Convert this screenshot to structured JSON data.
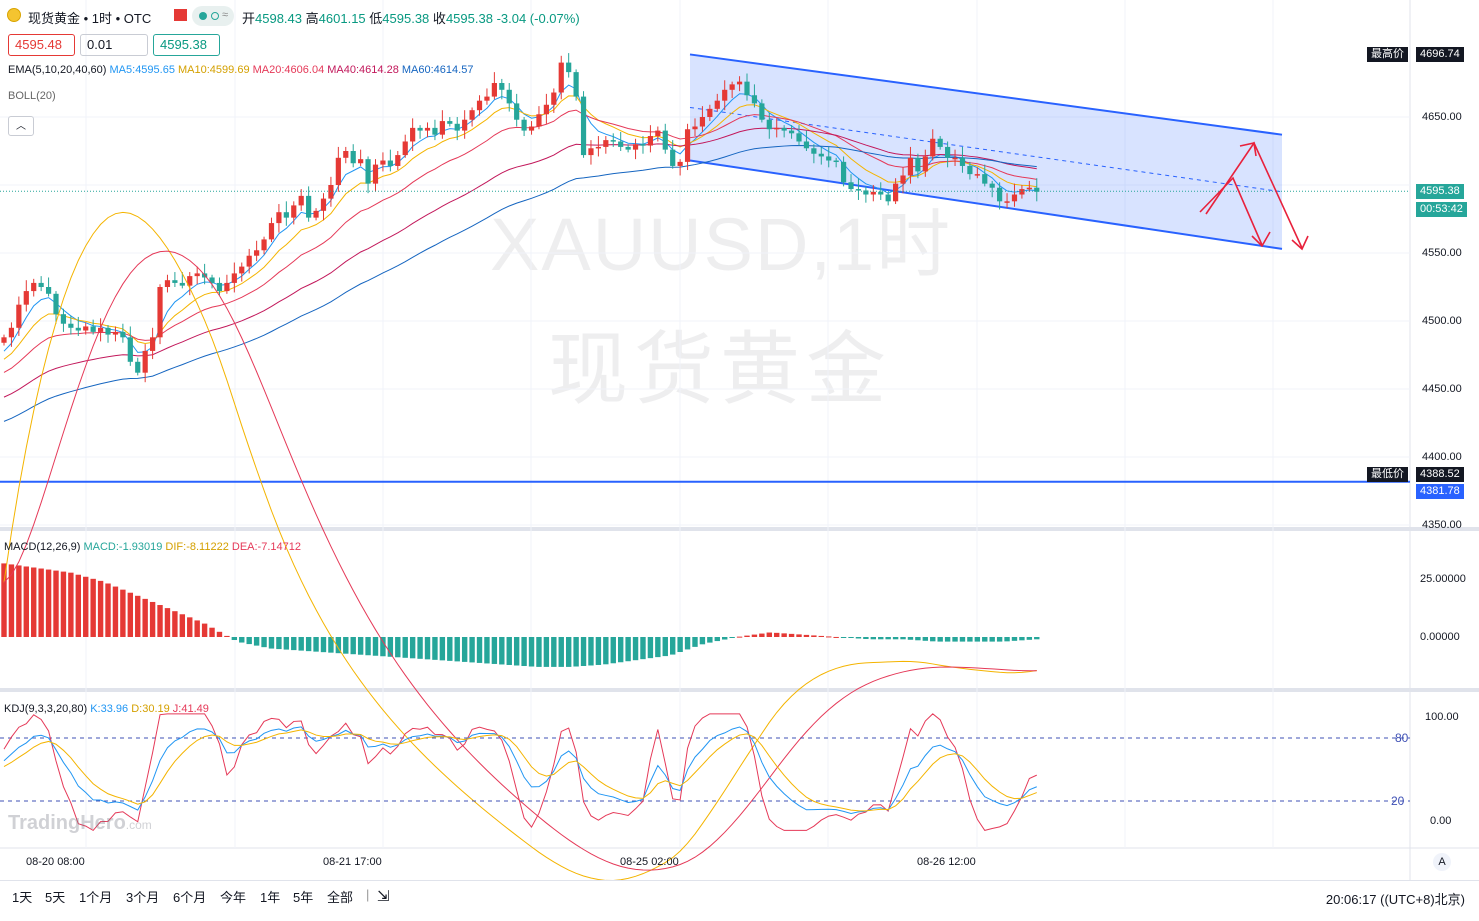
{
  "header": {
    "title": "现货黄金 • 1时 • OTC",
    "open_label": "开",
    "open": "4598.43",
    "high_label": "高",
    "high": "4601.15",
    "low_label": "低",
    "low": "4595.38",
    "close_label": "收",
    "close": "4595.38",
    "change": "-3.04 (-0.07%)"
  },
  "trade": {
    "sell": "4595.48",
    "qty": "0.01",
    "buy": "4595.38"
  },
  "indicators": {
    "ema_name": "EMA(5,10,20,40,60)",
    "ma5": "MA5:4595.65",
    "ma10": "MA10:4599.69",
    "ma20": "MA20:4606.04",
    "ma40": "MA40:4614.28",
    "ma60": "MA60:4614.57",
    "boll": "BOLL(20)"
  },
  "macd": {
    "name": "MACD(12,26,9)",
    "macd": "MACD:-1.93019",
    "dif": "DIF:-8.11222",
    "dea": "DEA:-7.14712"
  },
  "kdj": {
    "name": "KDJ(9,3,3,20,80)",
    "k": "K:33.96",
    "d": "D:30.19",
    "j": "J:41.49"
  },
  "watermark": {
    "symbol": "XAUUSD,1时",
    "name": "现货黄金"
  },
  "brand": {
    "name": "TradingHero",
    "suffix": ".com"
  },
  "price_axis": {
    "ticks": [
      "4650.00",
      "4550.00",
      "4500.00",
      "4450.00",
      "4400.00",
      "4350.00"
    ],
    "high_label": "最高价",
    "high_value": "4696.74",
    "low_label": "最低价",
    "low_value": "4388.52",
    "current": "4595.38",
    "countdown": "00:53:42",
    "line_value": "4381.78"
  },
  "macd_axis": {
    "ticks": [
      "25.00000",
      "0.00000"
    ]
  },
  "kdj_axis": {
    "ticks": [
      "100.00",
      "0.00"
    ],
    "level_high": "80",
    "level_low": "20"
  },
  "time_axis": {
    "ticks": [
      "08-20 08:00",
      "08-21 17:00",
      "08-25 02:00",
      "08-26 12:00"
    ]
  },
  "ranges": [
    "1天",
    "5天",
    "1个月",
    "3个月",
    "6个月",
    "今年",
    "1年",
    "5年",
    "全部"
  ],
  "clock": "20:06:17 ((UTC+8)北京)",
  "colors": {
    "up": "#e53935",
    "down": "#26a69a",
    "ma5": "#2196f3",
    "ma10": "#f4b400",
    "ma20": "#e53958",
    "ma40": "#c2185b",
    "ma60": "#1565c0",
    "channel": "#2962ff"
  },
  "chart_data": {
    "type": "candlestick",
    "price_range": [
      4330,
      4715
    ],
    "closes": [
      4488,
      4495,
      4512,
      4522,
      4528,
      4525,
      4520,
      4505,
      4498,
      4495,
      4493,
      4496,
      4492,
      4495,
      4490,
      4492,
      4488,
      4470,
      4462,
      4478,
      4488,
      4525,
      4530,
      4528,
      4526,
      4533,
      4535,
      4532,
      4528,
      4522,
      4528,
      4535,
      4540,
      4548,
      4552,
      4560,
      4572,
      4580,
      4576,
      4585,
      4592,
      4576,
      4581,
      4590,
      4600,
      4620,
      4625,
      4616,
      4619,
      4601,
      4615,
      4618,
      4614,
      4622,
      4632,
      4642,
      4640,
      4642,
      4637,
      4647,
      4645,
      4640,
      4648,
      4655,
      4662,
      4665,
      4675,
      4670,
      4660,
      4648,
      4640,
      4643,
      4652,
      4659,
      4668,
      4690,
      4683,
      4665,
      4622,
      4627,
      4628,
      4633,
      4632,
      4628,
      4626,
      4630,
      4629,
      4636,
      4640,
      4626,
      4614,
      4617,
      4641,
      4643,
      4650,
      4656,
      4662,
      4670,
      4674,
      4676,
      4666,
      4660,
      4648,
      4641,
      4642,
      4640,
      4638,
      4632,
      4627,
      4623,
      4621,
      4618,
      4617,
      4602,
      4597,
      4596,
      4593,
      4595,
      4593,
      4588,
      4601,
      4607,
      4620,
      4610,
      4621,
      4634,
      4628,
      4620,
      4620,
      4614,
      4608,
      4608,
      4601,
      4598,
      4588,
      4588,
      4593,
      4597,
      4598,
      4595
    ],
    "macd": {
      "histogram_start": [
        32,
        30,
        28,
        24,
        18,
        12,
        6,
        -2,
        -5,
        -6,
        -7,
        -8,
        -9,
        -10,
        -11,
        -12,
        -13,
        -13,
        -12,
        -10,
        -8,
        -3,
        0,
        2,
        1,
        0,
        -1,
        -1,
        -2,
        -2,
        -2,
        -1
      ],
      "dif_end": -8.11,
      "dea_end": -7.15,
      "macd_end": -1.93,
      "axis_range": [
        -45,
        50
      ]
    },
    "kdj": {
      "k_end": 33.96,
      "d_end": 30.19,
      "j_end": 41.49,
      "levels": [
        80,
        20
      ],
      "axis_range": [
        -10,
        105
      ]
    },
    "channel": {
      "upper": [
        4696,
        4637
      ],
      "lower": [
        4618,
        4553
      ]
    },
    "support_level": 4381.78,
    "projection": "up-then-down arrows near 4630 / 4555"
  }
}
